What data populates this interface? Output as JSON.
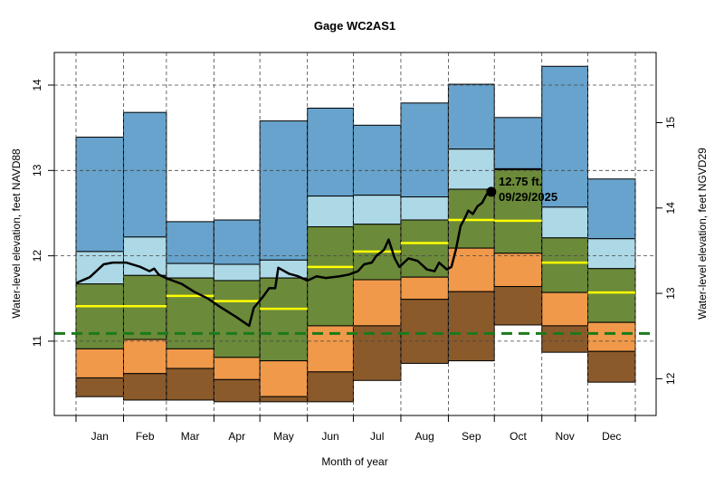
{
  "chart_data": {
    "type": "area",
    "title": "Gage WC2AS1",
    "xlabel": "Month of year",
    "ylabel": "Water-level elevation, feet NAVD88",
    "ylabel_right": "Water-level elevation, feet NGVD29",
    "ylim": [
      10.1,
      14.4
    ],
    "yticks": [
      11,
      12,
      13,
      14
    ],
    "yticks_right": [
      12,
      13,
      14,
      15
    ],
    "datum_offset_right": 1.44,
    "grid": true,
    "months": [
      "Jan",
      "Feb",
      "Mar",
      "Apr",
      "May",
      "Jun",
      "Jul",
      "Aug",
      "Sep",
      "Oct",
      "Nov",
      "Dec"
    ],
    "month_days": [
      31,
      28,
      31,
      30,
      31,
      30,
      31,
      31,
      30,
      31,
      30,
      31
    ],
    "band_colors": {
      "min_band": "#8b5a2b",
      "low_band": "#f0994a",
      "mid_band": "#6b8a3a",
      "high_band": "#add8e6",
      "max_band": "#67a3cc",
      "median": "#ffff00"
    },
    "bands": [
      {
        "month": "Jan",
        "bottom": 10.35,
        "b1": 10.57,
        "b2": 10.91,
        "b3": 11.67,
        "b4": 12.05,
        "top": 13.39,
        "median": 11.41
      },
      {
        "month": "Feb",
        "bottom": 10.31,
        "b1": 10.62,
        "b2": 11.02,
        "b3": 11.77,
        "b4": 12.22,
        "top": 13.68,
        "median": 11.41
      },
      {
        "month": "Mar",
        "bottom": 10.31,
        "b1": 10.68,
        "b2": 10.91,
        "b3": 11.74,
        "b4": 11.91,
        "top": 12.4,
        "median": 11.53
      },
      {
        "month": "Apr",
        "bottom": 10.29,
        "b1": 10.55,
        "b2": 10.81,
        "b3": 11.71,
        "b4": 11.9,
        "top": 12.42,
        "median": 11.47
      },
      {
        "month": "May",
        "bottom": 10.29,
        "b1": 10.35,
        "b2": 10.77,
        "b3": 11.74,
        "b4": 11.95,
        "top": 13.58,
        "median": 11.38
      },
      {
        "month": "Jun",
        "bottom": 10.29,
        "b1": 10.64,
        "b2": 11.18,
        "b3": 12.34,
        "b4": 12.7,
        "top": 13.73,
        "median": 11.87
      },
      {
        "month": "Jul",
        "bottom": 10.54,
        "b1": 11.18,
        "b2": 11.72,
        "b3": 12.37,
        "b4": 12.71,
        "top": 13.53,
        "median": 12.05
      },
      {
        "month": "Aug",
        "bottom": 10.74,
        "b1": 11.49,
        "b2": 11.75,
        "b3": 12.42,
        "b4": 12.69,
        "top": 13.79,
        "median": 12.15
      },
      {
        "month": "Sep",
        "bottom": 10.77,
        "b1": 11.58,
        "b2": 12.09,
        "b3": 12.78,
        "b4": 13.25,
        "top": 14.01,
        "median": 12.42
      },
      {
        "month": "Oct",
        "bottom": 11.19,
        "b1": 11.64,
        "b2": 12.03,
        "b3": 13.01,
        "b4": 13.02,
        "top": 13.62,
        "median": 12.41
      },
      {
        "month": "Nov",
        "bottom": 10.87,
        "b1": 11.18,
        "b2": 11.57,
        "b3": 12.21,
        "b4": 12.57,
        "top": 14.22,
        "median": 11.92
      },
      {
        "month": "Dec",
        "bottom": 10.52,
        "b1": 10.88,
        "b2": 11.22,
        "b3": 11.85,
        "b4": 12.2,
        "top": 12.9,
        "median": 11.57
      }
    ],
    "reference_line": {
      "value": 11.09,
      "color": "#1a7a1a"
    },
    "series": [
      {
        "day_of_year": [
          0,
          9,
          18,
          24,
          33,
          42,
          48,
          51,
          54,
          60,
          69,
          77,
          86,
          95,
          104,
          113,
          116,
          122,
          126,
          130,
          132,
          139,
          145,
          151,
          157,
          163,
          172,
          178,
          184,
          188,
          193,
          196,
          201,
          204,
          208,
          211,
          217,
          223,
          229,
          234,
          237,
          242,
          245,
          248,
          251,
          254,
          256,
          259,
          262,
          265,
          268,
          271
        ],
        "values": [
          11.68,
          11.75,
          11.9,
          11.92,
          11.92,
          11.87,
          11.82,
          11.85,
          11.78,
          11.73,
          11.67,
          11.58,
          11.5,
          11.39,
          11.29,
          11.18,
          11.39,
          11.52,
          11.62,
          11.62,
          11.86,
          11.79,
          11.76,
          11.71,
          11.76,
          11.74,
          11.76,
          11.78,
          11.82,
          11.9,
          11.92,
          12.0,
          12.07,
          12.19,
          11.97,
          11.87,
          11.97,
          11.94,
          11.84,
          11.82,
          11.92,
          11.84,
          11.87,
          12.08,
          12.35,
          12.45,
          12.53,
          12.49,
          12.58,
          12.62,
          12.72,
          12.75
        ],
        "color": "#000000"
      }
    ],
    "current": {
      "value": 12.75,
      "day_of_year": 271,
      "label_value": "12.75 ft.",
      "label_date": "09/29/2025"
    }
  }
}
